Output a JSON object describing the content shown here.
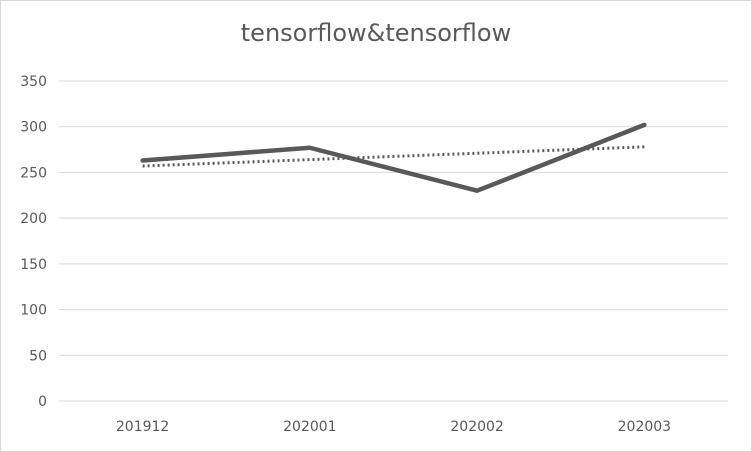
{
  "chart_data": {
    "type": "line",
    "title": "tensorflow&tensorflow",
    "xlabel": "",
    "ylabel": "",
    "categories": [
      "201912",
      "202001",
      "202002",
      "202003"
    ],
    "series": [
      {
        "values": [
          263,
          277,
          230,
          302
        ],
        "color": "#595959",
        "style": "solid"
      },
      {
        "values": [
          257,
          264,
          271,
          278
        ],
        "color": "#595959",
        "style": "dotted",
        "role": "linear-trendline"
      }
    ],
    "ylim": [
      0,
      350
    ],
    "yticks": [
      0,
      50,
      100,
      150,
      200,
      250,
      300,
      350
    ],
    "grid": true,
    "legend": "none"
  }
}
